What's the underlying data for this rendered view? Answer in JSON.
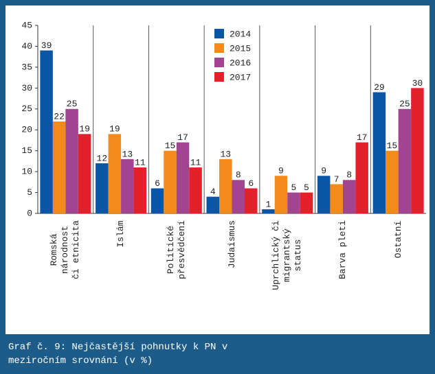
{
  "chart_data": {
    "type": "bar",
    "title": "Graf č. 9: Nejčastější pohnutky k PN v meziročním srovnání (v %)",
    "categories": [
      "Romská\nnárodnost\nči etnicita",
      "Islám",
      "Politické\npřesvědčení",
      "Judaismus",
      "Uprchlický či\nmigrantský\nstatus",
      "Barva pleti",
      "Ostatní"
    ],
    "series": [
      {
        "name": "2014",
        "color": "#0a56a6",
        "values": [
          39,
          12,
          6,
          4,
          1,
          9,
          29
        ]
      },
      {
        "name": "2015",
        "color": "#f28b1c",
        "values": [
          22,
          19,
          15,
          13,
          9,
          7,
          15
        ]
      },
      {
        "name": "2016",
        "color": "#a2448f",
        "values": [
          25,
          13,
          17,
          8,
          5,
          8,
          25
        ]
      },
      {
        "name": "2017",
        "color": "#e3212b",
        "values": [
          19,
          11,
          11,
          6,
          5,
          17,
          30
        ]
      }
    ],
    "ylim": [
      0,
      45
    ],
    "yticks": [
      0,
      5,
      10,
      15,
      20,
      25,
      30,
      35,
      40,
      45
    ],
    "grid": false,
    "legend": "top"
  }
}
